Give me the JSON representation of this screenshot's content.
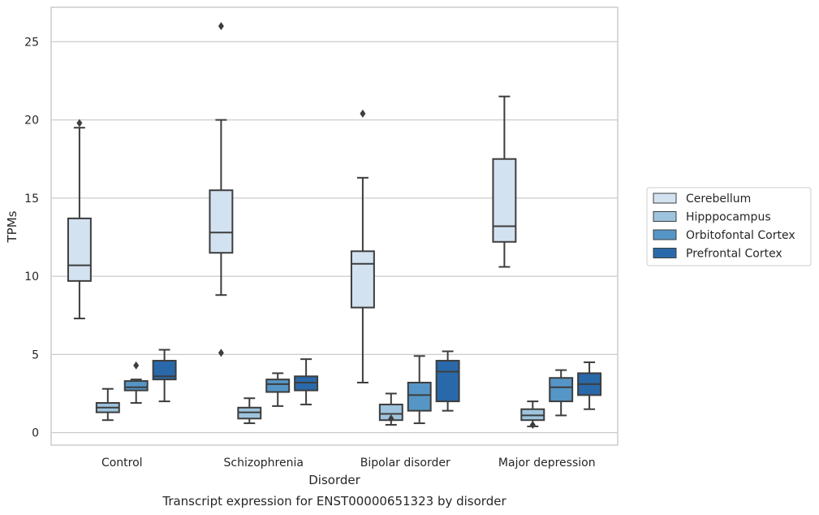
{
  "chart_data": {
    "type": "box",
    "title": "",
    "caption": "Transcript expression for ENST00000651323 by disorder",
    "xlabel": "Disorder",
    "ylabel": "TPMs",
    "ylim": [
      -0.8,
      27.2
    ],
    "yticks": [
      0,
      5,
      10,
      15,
      20,
      25
    ],
    "grid": "horizontal",
    "legend_position": "right",
    "categories": [
      "Control",
      "Schizophrenia",
      "Bipolar disorder",
      "Major depression"
    ],
    "series": [
      {
        "name": "Cerebellum",
        "color": "#d3e2f1",
        "boxes": [
          {
            "whislo": 7.3,
            "q1": 9.7,
            "med": 10.7,
            "q3": 13.7,
            "whishi": 19.5,
            "fliers": [
              19.8
            ]
          },
          {
            "whislo": 8.8,
            "q1": 11.5,
            "med": 12.8,
            "q3": 15.5,
            "whishi": 20.0,
            "fliers": [
              26.0,
              5.1
            ]
          },
          {
            "whislo": 3.2,
            "q1": 8.0,
            "med": 10.8,
            "q3": 11.6,
            "whishi": 16.3,
            "fliers": [
              20.4
            ]
          },
          {
            "whislo": 10.6,
            "q1": 12.2,
            "med": 13.2,
            "q3": 17.5,
            "whishi": 21.5,
            "fliers": []
          }
        ]
      },
      {
        "name": "Hipppocampus",
        "color": "#9ec4dd",
        "boxes": [
          {
            "whislo": 0.8,
            "q1": 1.3,
            "med": 1.6,
            "q3": 1.9,
            "whishi": 2.8,
            "fliers": []
          },
          {
            "whislo": 0.6,
            "q1": 0.9,
            "med": 1.3,
            "q3": 1.6,
            "whishi": 2.2,
            "fliers": []
          },
          {
            "whislo": 0.5,
            "q1": 0.8,
            "med": 1.2,
            "q3": 1.8,
            "whishi": 2.5,
            "fliers": [
              0.9
            ]
          },
          {
            "whislo": 0.4,
            "q1": 0.8,
            "med": 1.1,
            "q3": 1.5,
            "whishi": 2.0,
            "fliers": [
              0.5
            ]
          }
        ]
      },
      {
        "name": "Orbitofontal Cortex",
        "color": "#5696c6",
        "boxes": [
          {
            "whislo": 1.9,
            "q1": 2.7,
            "med": 2.9,
            "q3": 3.3,
            "whishi": 3.4,
            "fliers": [
              4.3
            ]
          },
          {
            "whislo": 1.7,
            "q1": 2.6,
            "med": 3.1,
            "q3": 3.4,
            "whishi": 3.8,
            "fliers": []
          },
          {
            "whislo": 0.6,
            "q1": 1.4,
            "med": 2.4,
            "q3": 3.2,
            "whishi": 4.9,
            "fliers": []
          },
          {
            "whislo": 1.1,
            "q1": 2.0,
            "med": 2.9,
            "q3": 3.5,
            "whishi": 4.0,
            "fliers": []
          }
        ]
      },
      {
        "name": "Prefrontal Cortex",
        "color": "#2a69a9",
        "boxes": [
          {
            "whislo": 2.0,
            "q1": 3.4,
            "med": 3.6,
            "q3": 4.6,
            "whishi": 5.3,
            "fliers": []
          },
          {
            "whislo": 1.8,
            "q1": 2.7,
            "med": 3.2,
            "q3": 3.6,
            "whishi": 4.7,
            "fliers": []
          },
          {
            "whislo": 1.4,
            "q1": 2.0,
            "med": 3.9,
            "q3": 4.6,
            "whishi": 5.2,
            "fliers": []
          },
          {
            "whislo": 1.5,
            "q1": 2.4,
            "med": 3.1,
            "q3": 3.8,
            "whishi": 4.5,
            "fliers": []
          }
        ]
      }
    ]
  }
}
